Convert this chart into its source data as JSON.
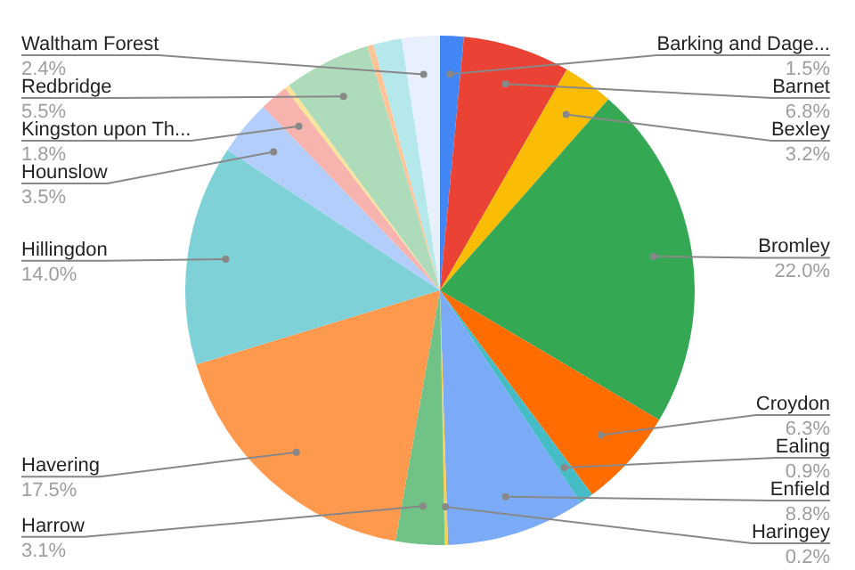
{
  "chart_data": {
    "type": "pie",
    "categories": [
      "Barking and Dage...",
      "Barnet",
      "Bexley",
      "Bromley",
      "Croydon",
      "Ealing",
      "Enfield",
      "Haringey",
      "Harrow",
      "Havering",
      "Hillingdon",
      "Hounslow",
      "Kingston upon Th...",
      null,
      "Redbridge",
      null,
      null,
      "Waltham Forest"
    ],
    "values": [
      1.5,
      6.8,
      3.2,
      22.0,
      6.3,
      0.9,
      8.8,
      0.2,
      3.1,
      17.5,
      14.0,
      3.5,
      1.8,
      0.3,
      5.5,
      0.4,
      1.8,
      2.4
    ],
    "colors": [
      "#4285f4",
      "#ea4335",
      "#fbbc04",
      "#34a853",
      "#ff6d01",
      "#46bdc6",
      "#7baaf7",
      "#fcd04f",
      "#71c287",
      "#ff994d",
      "#7ed1d7",
      "#b3cefb",
      "#f7b4ae",
      "#fde49b",
      "#aedcba",
      "#ffc599",
      "#b5e8eb",
      "#e8f0fe"
    ],
    "value_labels": [
      "1.5%",
      "6.8%",
      "3.2%",
      "22.0%",
      "6.3%",
      "0.9%",
      "8.8%",
      "0.2%",
      "3.1%",
      "17.5%",
      "14.0%",
      "3.5%",
      "1.8%",
      null,
      "5.5%",
      null,
      null,
      "2.4%"
    ],
    "legend": false
  }
}
